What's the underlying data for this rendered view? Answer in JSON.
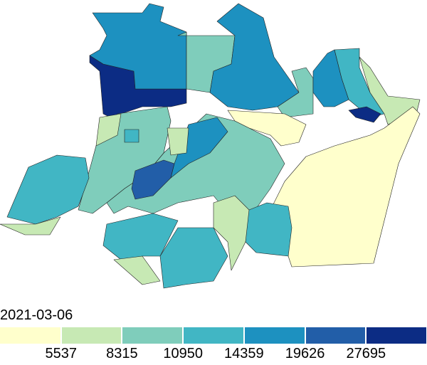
{
  "map": {
    "date_label": "2021-03-06",
    "legend": {
      "colors": [
        "#ffffcc",
        "#c7e9b4",
        "#7fcdbb",
        "#41b6c4",
        "#1d91c0",
        "#225ea8",
        "#0c2c84"
      ],
      "breaks": [
        "5537",
        "8315",
        "10950",
        "14359",
        "19626",
        "27695"
      ]
    },
    "region_classes": [
      6,
      4,
      2,
      4,
      2,
      4,
      3,
      6,
      1,
      0,
      0,
      2,
      2,
      3,
      1,
      3,
      3,
      1,
      3,
      5,
      4,
      1,
      1,
      3,
      1
    ]
  }
}
